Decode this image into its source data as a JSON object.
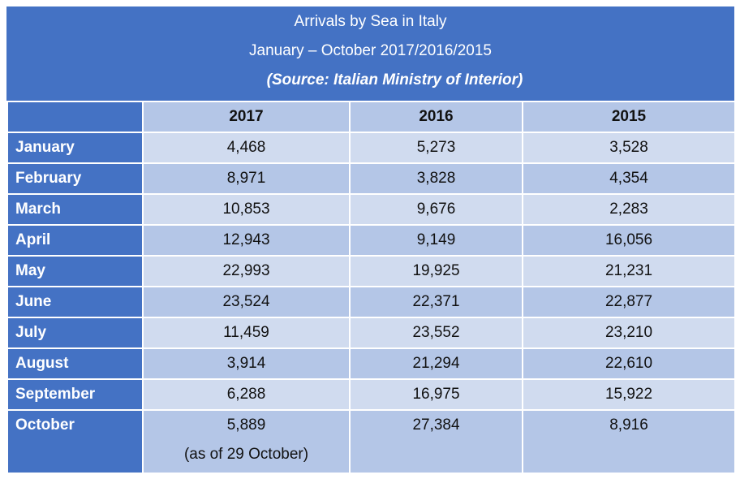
{
  "header": {
    "title": "Arrivals by Sea in Italy",
    "subtitle": "January – October 2017/2016/2015",
    "source": "(Source: Italian Ministry of Interior)"
  },
  "table": {
    "columns": [
      "2017",
      "2016",
      "2015"
    ],
    "rows": [
      [
        "January",
        "4,468",
        "5,273",
        "3,528"
      ],
      [
        "February",
        "8,971",
        "3,828",
        "4,354"
      ],
      [
        "March",
        "10,853",
        "9,676",
        "2,283"
      ],
      [
        "April",
        "12,943",
        "9,149",
        "16,056"
      ],
      [
        "May",
        "22,993",
        "19,925",
        "21,231"
      ],
      [
        "June",
        "23,524",
        "22,371",
        "22,877"
      ],
      [
        "July",
        "11,459",
        "23,552",
        "23,210"
      ],
      [
        "August",
        "3,914",
        "21,294",
        "22,610"
      ],
      [
        "September",
        "6,288",
        "16,975",
        "15,922"
      ],
      [
        "October",
        "5,889",
        "27,384",
        "8,916"
      ]
    ],
    "note_2017_october": "(as of 29 October)"
  }
}
